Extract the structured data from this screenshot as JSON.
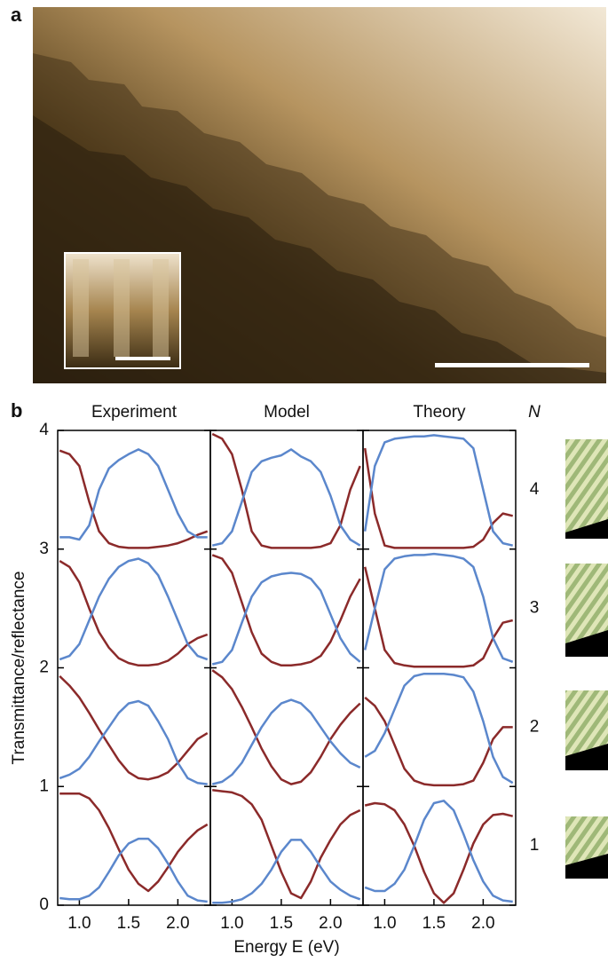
{
  "figure": {
    "panel_a_label": "a",
    "panel_b_label": "b",
    "n_header": "N",
    "n_values": [
      4,
      3,
      2,
      1
    ]
  },
  "chart_data": [
    {
      "type": "line",
      "title": "Experiment",
      "y_label": "Transmittance/reflectance",
      "x": [
        0.8,
        0.9,
        1.0,
        1.1,
        1.2,
        1.3,
        1.4,
        1.5,
        1.6,
        1.7,
        1.8,
        1.9,
        2.0,
        2.1,
        2.2,
        2.3
      ],
      "xlim": [
        0.78,
        2.33
      ],
      "xticks": [
        {
          "value": 1,
          "label": "1.0"
        },
        1.5,
        {
          "value": 2,
          "label": "2.0"
        }
      ],
      "ylim": [
        0,
        4
      ],
      "yticks": [
        0,
        1,
        2,
        3,
        4
      ],
      "series": [
        {
          "color": "#8b2a2a",
          "values": [
            3.83,
            3.8,
            3.7,
            3.4,
            3.15,
            3.05,
            3.02,
            3.01,
            3.01,
            3.01,
            3.02,
            3.03,
            3.05,
            3.08,
            3.12,
            3.15
          ]
        },
        {
          "color": "#5b87cc",
          "values": [
            3.1,
            3.1,
            3.08,
            3.2,
            3.5,
            3.68,
            3.75,
            3.8,
            3.84,
            3.8,
            3.7,
            3.5,
            3.3,
            3.15,
            3.1,
            3.1
          ]
        },
        {
          "color": "#8b2a2a",
          "values": [
            2.9,
            2.85,
            2.72,
            2.5,
            2.3,
            2.17,
            2.08,
            2.04,
            2.02,
            2.02,
            2.03,
            2.06,
            2.12,
            2.2,
            2.25,
            2.28
          ]
        },
        {
          "color": "#5b87cc",
          "values": [
            2.07,
            2.1,
            2.2,
            2.4,
            2.6,
            2.75,
            2.85,
            2.9,
            2.92,
            2.88,
            2.78,
            2.6,
            2.4,
            2.2,
            2.1,
            2.07
          ]
        },
        {
          "color": "#8b2a2a",
          "values": [
            1.93,
            1.85,
            1.75,
            1.62,
            1.48,
            1.35,
            1.22,
            1.12,
            1.07,
            1.06,
            1.08,
            1.12,
            1.2,
            1.3,
            1.4,
            1.45
          ]
        },
        {
          "color": "#5b87cc",
          "values": [
            1.07,
            1.1,
            1.15,
            1.25,
            1.38,
            1.5,
            1.62,
            1.7,
            1.72,
            1.68,
            1.55,
            1.4,
            1.2,
            1.07,
            1.03,
            1.02
          ]
        },
        {
          "color": "#8b2a2a",
          "values": [
            0.94,
            0.94,
            0.94,
            0.9,
            0.8,
            0.65,
            0.47,
            0.3,
            0.18,
            0.12,
            0.2,
            0.32,
            0.45,
            0.55,
            0.63,
            0.68
          ]
        },
        {
          "color": "#5b87cc",
          "values": [
            0.06,
            0.05,
            0.05,
            0.08,
            0.15,
            0.28,
            0.42,
            0.52,
            0.56,
            0.56,
            0.48,
            0.35,
            0.2,
            0.08,
            0.04,
            0.03
          ]
        }
      ]
    },
    {
      "type": "line",
      "title": "Model",
      "x_label": "Energy E (eV)",
      "x": [
        0.8,
        0.9,
        1.0,
        1.1,
        1.2,
        1.3,
        1.4,
        1.5,
        1.6,
        1.7,
        1.8,
        1.9,
        2.0,
        2.1,
        2.2,
        2.3
      ],
      "xlim": [
        0.78,
        2.33
      ],
      "xticks": [
        {
          "value": 1,
          "label": "1.0"
        },
        1.5,
        {
          "value": 2,
          "label": "2.0"
        }
      ],
      "ylim": [
        0,
        4
      ],
      "series": [
        {
          "color": "#8b2a2a",
          "values": [
            3.97,
            3.93,
            3.8,
            3.5,
            3.15,
            3.03,
            3.01,
            3.01,
            3.01,
            3.01,
            3.01,
            3.02,
            3.05,
            3.2,
            3.5,
            3.7
          ]
        },
        {
          "color": "#5b87cc",
          "values": [
            3.03,
            3.05,
            3.15,
            3.4,
            3.65,
            3.74,
            3.77,
            3.79,
            3.84,
            3.78,
            3.74,
            3.65,
            3.45,
            3.2,
            3.08,
            3.03
          ]
        },
        {
          "color": "#8b2a2a",
          "values": [
            2.95,
            2.92,
            2.8,
            2.55,
            2.3,
            2.12,
            2.05,
            2.02,
            2.02,
            2.03,
            2.05,
            2.1,
            2.22,
            2.4,
            2.6,
            2.75
          ]
        },
        {
          "color": "#5b87cc",
          "values": [
            2.03,
            2.05,
            2.15,
            2.38,
            2.6,
            2.72,
            2.77,
            2.79,
            2.8,
            2.79,
            2.75,
            2.65,
            2.45,
            2.25,
            2.12,
            2.05
          ]
        },
        {
          "color": "#8b2a2a",
          "values": [
            1.98,
            1.92,
            1.82,
            1.67,
            1.5,
            1.32,
            1.17,
            1.06,
            1.02,
            1.04,
            1.12,
            1.25,
            1.4,
            1.52,
            1.62,
            1.7
          ]
        },
        {
          "color": "#5b87cc",
          "values": [
            1.02,
            1.04,
            1.1,
            1.2,
            1.35,
            1.5,
            1.62,
            1.7,
            1.73,
            1.7,
            1.62,
            1.5,
            1.38,
            1.28,
            1.2,
            1.16
          ]
        },
        {
          "color": "#8b2a2a",
          "values": [
            0.97,
            0.96,
            0.95,
            0.92,
            0.85,
            0.72,
            0.5,
            0.28,
            0.1,
            0.06,
            0.2,
            0.4,
            0.55,
            0.68,
            0.76,
            0.8
          ]
        },
        {
          "color": "#5b87cc",
          "values": [
            0.02,
            0.02,
            0.03,
            0.05,
            0.1,
            0.18,
            0.3,
            0.45,
            0.55,
            0.55,
            0.45,
            0.32,
            0.2,
            0.13,
            0.08,
            0.05
          ]
        }
      ]
    },
    {
      "type": "line",
      "title": "Theory",
      "x": [
        0.8,
        0.9,
        1.0,
        1.1,
        1.2,
        1.3,
        1.4,
        1.5,
        1.6,
        1.7,
        1.8,
        1.9,
        2.0,
        2.1,
        2.2,
        2.3
      ],
      "xlim": [
        0.78,
        2.33
      ],
      "xticks": [
        {
          "value": 1,
          "label": "1.0"
        },
        1.5,
        {
          "value": 2,
          "label": "2.0"
        }
      ],
      "ylim": [
        0,
        4
      ],
      "series": [
        {
          "color": "#8b2a2a",
          "values": [
            3.85,
            3.3,
            3.03,
            3.01,
            3.01,
            3.01,
            3.01,
            3.01,
            3.01,
            3.01,
            3.01,
            3.02,
            3.08,
            3.22,
            3.3,
            3.28
          ]
        },
        {
          "color": "#5b87cc",
          "values": [
            3.15,
            3.7,
            3.9,
            3.93,
            3.94,
            3.95,
            3.95,
            3.96,
            3.95,
            3.94,
            3.93,
            3.85,
            3.5,
            3.15,
            3.05,
            3.03
          ]
        },
        {
          "color": "#8b2a2a",
          "values": [
            2.85,
            2.5,
            2.15,
            2.04,
            2.02,
            2.01,
            2.01,
            2.01,
            2.01,
            2.01,
            2.01,
            2.02,
            2.08,
            2.25,
            2.38,
            2.4
          ]
        },
        {
          "color": "#5b87cc",
          "values": [
            2.15,
            2.5,
            2.83,
            2.92,
            2.94,
            2.95,
            2.95,
            2.96,
            2.95,
            2.94,
            2.92,
            2.85,
            2.6,
            2.25,
            2.08,
            2.05
          ]
        },
        {
          "color": "#8b2a2a",
          "values": [
            1.75,
            1.68,
            1.55,
            1.35,
            1.15,
            1.05,
            1.02,
            1.01,
            1.01,
            1.01,
            1.02,
            1.05,
            1.2,
            1.4,
            1.5,
            1.5
          ]
        },
        {
          "color": "#5b87cc",
          "values": [
            1.25,
            1.3,
            1.45,
            1.65,
            1.85,
            1.93,
            1.95,
            1.95,
            1.95,
            1.94,
            1.92,
            1.8,
            1.55,
            1.25,
            1.08,
            1.03
          ]
        },
        {
          "color": "#8b2a2a",
          "values": [
            0.84,
            0.86,
            0.85,
            0.8,
            0.68,
            0.5,
            0.28,
            0.1,
            0.02,
            0.1,
            0.3,
            0.52,
            0.68,
            0.76,
            0.77,
            0.75
          ]
        },
        {
          "color": "#5b87cc",
          "values": [
            0.15,
            0.12,
            0.12,
            0.18,
            0.3,
            0.5,
            0.72,
            0.86,
            0.88,
            0.8,
            0.6,
            0.38,
            0.2,
            0.08,
            0.04,
            0.03
          ]
        }
      ]
    }
  ]
}
